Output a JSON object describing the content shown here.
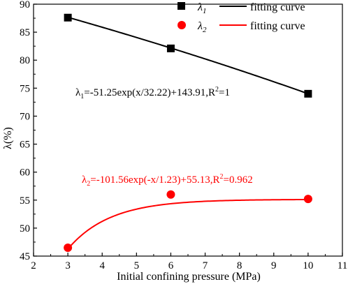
{
  "chart_data": {
    "type": "scatter",
    "xlabel": "Initial confining pressure (MPa)",
    "ylabel": "λ(%)",
    "xlim": [
      2,
      11
    ],
    "ylim": [
      45,
      90
    ],
    "xticks": [
      2,
      3,
      4,
      5,
      6,
      7,
      8,
      9,
      10,
      11
    ],
    "yticks": [
      45,
      50,
      55,
      60,
      65,
      70,
      75,
      80,
      85,
      90
    ],
    "series": [
      {
        "name": "λ1",
        "marker": "square",
        "color": "#000000",
        "x": [
          3,
          6,
          10
        ],
        "y": [
          87.6,
          82.1,
          74.0
        ],
        "fit": {
          "label": "fitting curve",
          "equation": "λ1=-51.25exp(x/32.22)+143.91,R2=1",
          "eq_prefix": "λ",
          "eq_sub": "1",
          "eq_main": "=-51.25exp(x/32.22)+143.91,R",
          "eq_sup": "2",
          "eq_tail": "=1",
          "A": -51.25,
          "t": 32.22,
          "y0": 143.91,
          "sign": 1
        }
      },
      {
        "name": "λ2",
        "marker": "circle",
        "color": "#ff0000",
        "x": [
          3,
          6,
          10
        ],
        "y": [
          46.5,
          56.0,
          55.2
        ],
        "fit": {
          "label": "fitting curve",
          "equation": "λ2=-101.56exp(-x/1.23)+55.13,R2=0.962",
          "eq_prefix": "λ",
          "eq_sub": "2",
          "eq_main": "=-101.56exp(-x/1.23)+55.13,R",
          "eq_sup": "2",
          "eq_tail": "=0.962",
          "A": -101.56,
          "t": 1.23,
          "y0": 55.13,
          "sign": -1
        }
      }
    ]
  }
}
